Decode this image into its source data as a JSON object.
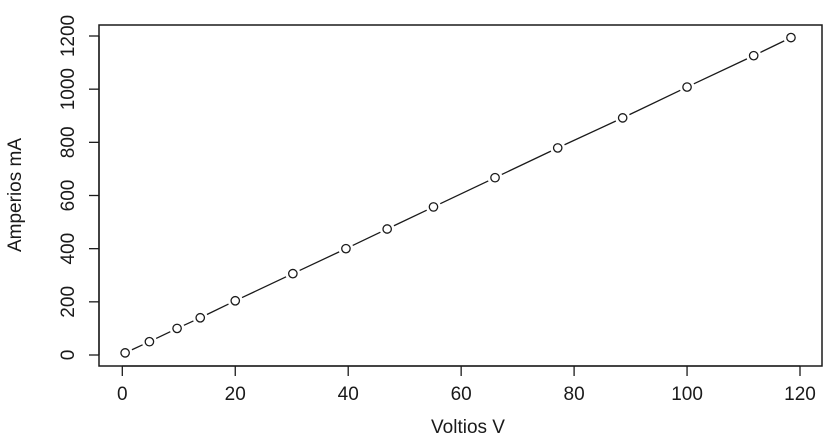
{
  "chart_data": {
    "type": "scatter",
    "title": "",
    "xlabel": "Voltios V",
    "ylabel": "Amperios mA",
    "xlim": [
      0,
      120
    ],
    "ylim": [
      0,
      1200
    ],
    "x_ticks": [
      "0",
      "20",
      "40",
      "60",
      "80",
      "100",
      "120"
    ],
    "y_ticks": [
      "0",
      "200",
      "400",
      "600",
      "800",
      "1000",
      "1200"
    ],
    "grid": false,
    "legend": "none",
    "connect_with_line": true,
    "series": [
      {
        "points": [
          {
            "x": 0.5,
            "y": 8
          },
          {
            "x": 4.8,
            "y": 50
          },
          {
            "x": 9.7,
            "y": 100
          },
          {
            "x": 13.8,
            "y": 140
          },
          {
            "x": 20.0,
            "y": 204
          },
          {
            "x": 30.2,
            "y": 306
          },
          {
            "x": 39.6,
            "y": 400
          },
          {
            "x": 46.9,
            "y": 474
          },
          {
            "x": 55.1,
            "y": 557
          },
          {
            "x": 66.0,
            "y": 667
          },
          {
            "x": 77.1,
            "y": 779
          },
          {
            "x": 88.6,
            "y": 892
          },
          {
            "x": 100.0,
            "y": 1008
          },
          {
            "x": 111.8,
            "y": 1126
          },
          {
            "x": 118.4,
            "y": 1194
          }
        ]
      }
    ]
  }
}
